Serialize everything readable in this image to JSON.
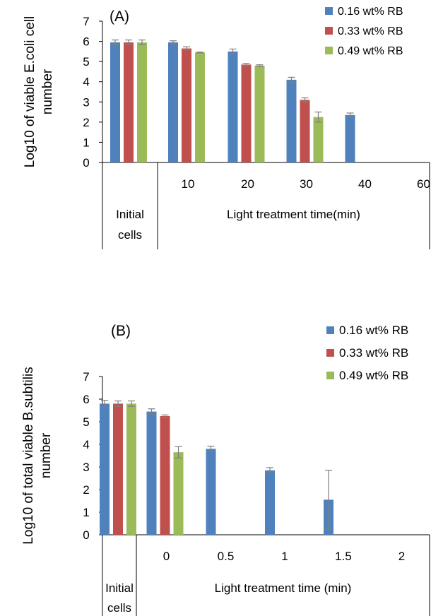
{
  "chart_data": [
    {
      "type": "bar",
      "panel_label": "(A)",
      "ylabel_lines": [
        "Log10 of  viable E.coli cell",
        "number"
      ],
      "ylim": [
        0,
        7
      ],
      "yticks": [
        0,
        1,
        2,
        3,
        4,
        5,
        6,
        7
      ],
      "grid": false,
      "legend_position": "top-right",
      "initial_group_label": [
        "Initial",
        "cells"
      ],
      "treatment_label": "Light treatment time(min)",
      "categories": [
        "Initial",
        "10",
        "20",
        "30",
        "40",
        "60"
      ],
      "series": [
        {
          "name": "0.16 wt% RB",
          "color": "#4f81bd",
          "values": [
            5.95,
            5.95,
            5.5,
            4.1,
            2.35,
            0
          ],
          "errors": [
            0.12,
            0.08,
            0.12,
            0.12,
            0.1,
            0
          ]
        },
        {
          "name": "0.33 wt% RB",
          "color": "#c0504d",
          "values": [
            5.95,
            5.65,
            4.85,
            3.1,
            0,
            0
          ],
          "errors": [
            0.12,
            0.08,
            0.06,
            0.1,
            0,
            0
          ]
        },
        {
          "name": "0.49 wt% RB",
          "color": "#9bbb59",
          "values": [
            5.95,
            5.45,
            4.8,
            2.25,
            0,
            0
          ],
          "errors": [
            0.12,
            0.02,
            0.04,
            0.25,
            0,
            0
          ]
        }
      ]
    },
    {
      "type": "bar",
      "panel_label": "(B)",
      "ylabel_lines": [
        "Log10 of total viable  B.subtilis",
        "number"
      ],
      "ylim": [
        0,
        7
      ],
      "yticks": [
        0,
        1,
        2,
        3,
        4,
        5,
        6,
        7
      ],
      "grid": false,
      "legend_position": "top-right",
      "initial_group_label": [
        "Initial",
        "cells"
      ],
      "treatment_label": "Light treatment time (min)",
      "categories": [
        "Initial",
        "0",
        "0.5",
        "1",
        "1.5",
        "2"
      ],
      "series": [
        {
          "name": "0.16 wt% RB",
          "color": "#4f81bd",
          "values": [
            5.8,
            5.45,
            3.8,
            2.85,
            1.55,
            0
          ],
          "errors": [
            0.15,
            0.12,
            0.12,
            0.12,
            1.3,
            0
          ]
        },
        {
          "name": "0.33 wt% RB",
          "color": "#c0504d",
          "values": [
            5.8,
            5.25,
            0,
            0,
            0,
            0
          ],
          "errors": [
            0.12,
            0.05,
            0,
            0,
            0,
            0
          ]
        },
        {
          "name": "0.49 wt% RB",
          "color": "#9bbb59",
          "values": [
            5.8,
            3.65,
            0,
            0,
            0,
            0
          ],
          "errors": [
            0.12,
            0.25,
            0,
            0,
            0,
            0
          ]
        }
      ]
    }
  ]
}
